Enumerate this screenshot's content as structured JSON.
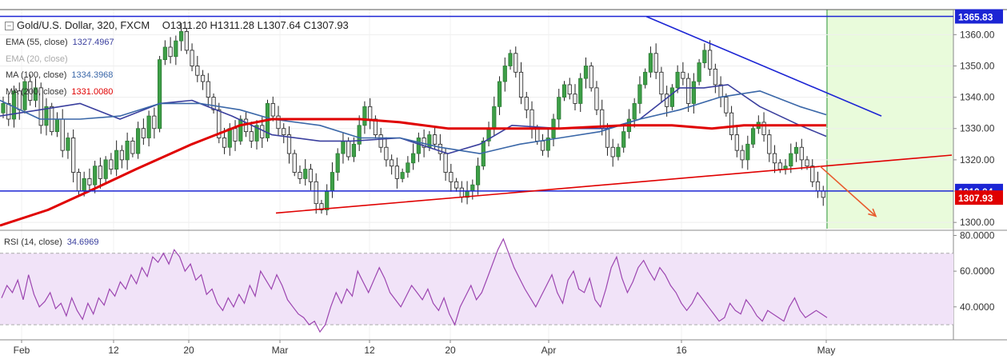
{
  "header": {
    "symbol": "Gold/U.S. Dollar, 320, FXCM",
    "ohlc": "O1311.20 H1311.28 L1307.64 C1307.93",
    "indicators": [
      {
        "label": "EMA (55, close)",
        "value": "1327.4967",
        "color": "#3a3f9e",
        "faded": false
      },
      {
        "label": "EMA (20, close)",
        "value": "",
        "color": "#aaaaaa",
        "faded": true
      },
      {
        "label": "MA (100, close)",
        "value": "1334.3968",
        "color": "#3a67a8",
        "faded": false
      },
      {
        "label": "MA (200, close)",
        "value": "1331.0080",
        "color": "#e00000",
        "faded": false
      }
    ]
  },
  "rsi": {
    "label": "RSI (14, close)",
    "value": "34.6969"
  },
  "chart_data": [
    {
      "type": "candlestick",
      "title": "Gold/U.S. Dollar, 320, FXCM",
      "ylim": [
        1298,
        1368
      ],
      "y_ticks": [
        "1300.00",
        "1310.00",
        "1320.00",
        "1330.00",
        "1340.00",
        "1350.00",
        "1360.00"
      ],
      "x_ticks": [
        "Feb",
        "12",
        "20",
        "Mar",
        "12",
        "20",
        "Apr",
        "16",
        "May"
      ],
      "price_labels": [
        {
          "text": "1365.83",
          "value": 1365.83,
          "color": "#1c25d4"
        },
        {
          "text": "1310.04",
          "value": 1310.04,
          "color": "#1c25d4"
        },
        {
          "text": "1307.93",
          "value": 1307.93,
          "color": "#e00000"
        }
      ],
      "close_path": [
        1335,
        1338,
        1333,
        1342,
        1336,
        1345,
        1339,
        1343,
        1331,
        1337,
        1329,
        1333,
        1323,
        1327,
        1316,
        1310,
        1314,
        1312,
        1318,
        1314,
        1320,
        1317,
        1323,
        1320,
        1326,
        1322,
        1330,
        1327,
        1334,
        1330,
        1352,
        1356,
        1353,
        1358,
        1361,
        1355,
        1350,
        1347,
        1345,
        1340,
        1336,
        1327,
        1324,
        1330,
        1326,
        1333,
        1329,
        1326,
        1331,
        1327,
        1338,
        1334,
        1330,
        1328,
        1322,
        1316,
        1314,
        1317,
        1313,
        1306,
        1304,
        1310,
        1316,
        1322,
        1326,
        1321,
        1325,
        1331,
        1337,
        1333,
        1328,
        1324,
        1320,
        1318,
        1314,
        1316,
        1319,
        1322,
        1327,
        1324,
        1328,
        1325,
        1322,
        1316,
        1313,
        1311,
        1308,
        1310,
        1312,
        1318,
        1326,
        1330,
        1337,
        1345,
        1350,
        1354,
        1348,
        1340,
        1336,
        1330,
        1326,
        1323,
        1327,
        1333,
        1340,
        1344,
        1341,
        1338,
        1346,
        1350,
        1343,
        1336,
        1330,
        1324,
        1321,
        1324,
        1329,
        1333,
        1338,
        1344,
        1348,
        1354,
        1348,
        1341,
        1337,
        1343,
        1348,
        1346,
        1338,
        1345,
        1351,
        1355,
        1349,
        1344,
        1340,
        1335,
        1328,
        1323,
        1320,
        1325,
        1330,
        1332,
        1328,
        1322,
        1319,
        1317,
        1318,
        1322,
        1324,
        1320,
        1318,
        1313,
        1310,
        1308
      ],
      "series": [
        {
          "name": "EMA (55, close)",
          "color": "#3a3f9e",
          "points": [
            [
              0,
              1334
            ],
            [
              50,
              1336
            ],
            [
              100,
              1338
            ],
            [
              150,
              1333
            ],
            [
              200,
              1338
            ],
            [
              240,
              1339
            ],
            [
              290,
              1334
            ],
            [
              340,
              1328
            ],
            [
              400,
              1326
            ],
            [
              440,
              1326
            ],
            [
              500,
              1327
            ],
            [
              560,
              1322
            ],
            [
              600,
              1325
            ],
            [
              640,
              1331
            ],
            [
              700,
              1330
            ],
            [
              760,
              1330
            ],
            [
              800,
              1333
            ],
            [
              850,
              1343
            ],
            [
              880,
              1343
            ],
            [
              910,
              1344
            ],
            [
              950,
              1337
            ],
            [
              1000,
              1331
            ],
            [
              1033,
              1327.5
            ]
          ]
        },
        {
          "name": "MA (100, close)",
          "color": "#3a67a8",
          "points": [
            [
              0,
              1339
            ],
            [
              50,
              1333
            ],
            [
              100,
              1333
            ],
            [
              150,
              1334
            ],
            [
              200,
              1338
            ],
            [
              250,
              1338
            ],
            [
              300,
              1336
            ],
            [
              340,
              1333
            ],
            [
              400,
              1331
            ],
            [
              450,
              1327
            ],
            [
              500,
              1327
            ],
            [
              550,
              1324
            ],
            [
              600,
              1322
            ],
            [
              650,
              1325
            ],
            [
              700,
              1327
            ],
            [
              750,
              1329
            ],
            [
              800,
              1333
            ],
            [
              850,
              1336
            ],
            [
              900,
              1340
            ],
            [
              950,
              1342
            ],
            [
              1000,
              1337
            ],
            [
              1033,
              1334.4
            ]
          ]
        },
        {
          "name": "MA (200, close)",
          "color": "#e00000",
          "points": [
            [
              0,
              1299
            ],
            [
              60,
              1304
            ],
            [
              120,
              1311
            ],
            [
              170,
              1317
            ],
            [
              240,
              1325
            ],
            [
              300,
              1331
            ],
            [
              340,
              1333
            ],
            [
              400,
              1333
            ],
            [
              450,
              1333
            ],
            [
              500,
              1332
            ],
            [
              560,
              1330
            ],
            [
              620,
              1330
            ],
            [
              700,
              1330
            ],
            [
              780,
              1331
            ],
            [
              840,
              1331
            ],
            [
              890,
              1330
            ],
            [
              930,
              1331
            ],
            [
              990,
              1331
            ],
            [
              1033,
              1331
            ]
          ]
        }
      ],
      "annotations": [
        {
          "kind": "hline",
          "value": 1365.83,
          "color": "#1c25d4"
        },
        {
          "kind": "hline",
          "value": 1310.04,
          "color": "#1c25d4"
        },
        {
          "kind": "trendline",
          "color": "#1c25d4",
          "from": [
            808,
            1365.8
          ],
          "to": [
            1102,
            1334
          ]
        },
        {
          "kind": "trendline",
          "color": "#e00000",
          "from": [
            345,
            1303
          ],
          "to": [
            1190,
            1321.5
          ]
        },
        {
          "kind": "arrow",
          "color": "#e85b2d",
          "from": [
            1025,
            1318
          ],
          "to": [
            1095,
            1302
          ]
        }
      ],
      "projection_region": {
        "color": "#e9fbdb"
      }
    },
    {
      "type": "line",
      "title": "RSI (14, close)",
      "ylim": [
        22,
        82
      ],
      "y_ticks": [
        "40.0000",
        "60.0000",
        "80.0000"
      ],
      "band": [
        30,
        70
      ],
      "color": "#9c45b0",
      "values": [
        45,
        52,
        48,
        55,
        44,
        58,
        47,
        40,
        43,
        48,
        39,
        42,
        35,
        45,
        38,
        33,
        42,
        36,
        45,
        41,
        50,
        46,
        54,
        50,
        58,
        53,
        62,
        57,
        68,
        65,
        70,
        64,
        72,
        68,
        60,
        64,
        55,
        58,
        47,
        50,
        42,
        38,
        45,
        40,
        47,
        42,
        52,
        46,
        60,
        55,
        50,
        58,
        52,
        44,
        40,
        36,
        34,
        30,
        32,
        26,
        30,
        40,
        48,
        42,
        50,
        46,
        60,
        54,
        48,
        55,
        62,
        56,
        48,
        44,
        40,
        46,
        52,
        48,
        44,
        50,
        42,
        38,
        45,
        36,
        30,
        40,
        46,
        52,
        44,
        48,
        56,
        64,
        72,
        78,
        70,
        62,
        56,
        50,
        45,
        40,
        46,
        52,
        58,
        48,
        42,
        55,
        60,
        50,
        48,
        56,
        44,
        40,
        50,
        62,
        68,
        56,
        48,
        54,
        62,
        66,
        60,
        55,
        62,
        58,
        52,
        48,
        42,
        38,
        42,
        48,
        44,
        40,
        36,
        32,
        34,
        42,
        38,
        36,
        44,
        40,
        35,
        32,
        38,
        36,
        34,
        32,
        40,
        45,
        38,
        34,
        36,
        38,
        36,
        34
      ]
    }
  ]
}
